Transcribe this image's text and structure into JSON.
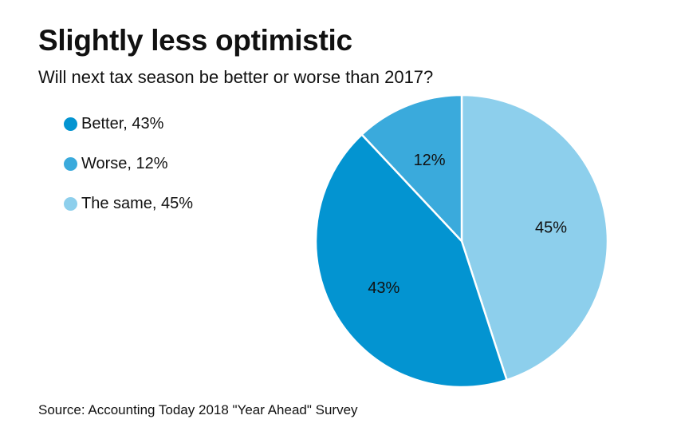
{
  "chart_data": {
    "type": "pie",
    "title": "Slightly less optimistic",
    "subtitle": "Will next tax season be better or worse than 2017?",
    "start": "12 o'clock",
    "direction": "clockwise",
    "slices": [
      {
        "name": "The same",
        "value": 45,
        "label": "45%",
        "legend": "The same, 45%",
        "color": "#8dcfec"
      },
      {
        "name": "Better",
        "value": 43,
        "label": "43%",
        "legend": "Better, 43%",
        "color": "#0394d1"
      },
      {
        "name": "Worse",
        "value": 12,
        "label": "12%",
        "legend": "Worse, 12%",
        "color": "#3aaadc"
      }
    ],
    "legend_order": [
      "Better",
      "Worse",
      "The same"
    ],
    "legend_placement": "left",
    "source": "Source: Accounting Today 2018 \"Year Ahead\" Survey"
  }
}
